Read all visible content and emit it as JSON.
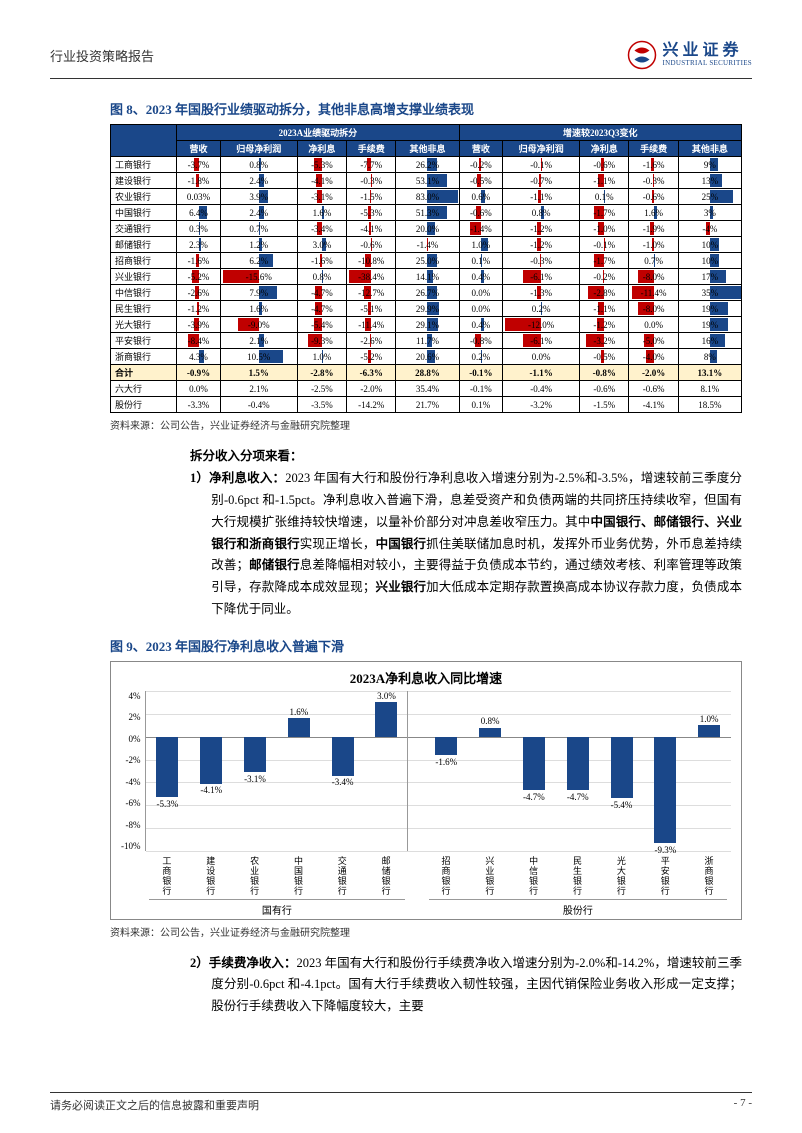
{
  "header": {
    "title": "行业投资策略报告",
    "logo_cn": "兴业证券",
    "logo_en": "INDUSTRIAL SECURITIES"
  },
  "fig8": {
    "title": "图 8、2023 年国股行业绩驱动拆分，其他非息高增支撑业绩表现",
    "group1": "2023A业绩驱动拆分",
    "group2": "增速较2023Q3变化",
    "cols": [
      "",
      "营收",
      "归母净利润",
      "净利息",
      "手续费",
      "其他非息",
      "营收",
      "归母净利润",
      "净利息",
      "手续费",
      "其他非息"
    ],
    "rows": [
      [
        "工商银行",
        "-3.7%",
        "0.8%",
        "-5.3%",
        "-7.7%",
        "26.2%",
        "-0.2%",
        "-0.1%",
        "-0.6%",
        "-1.6%",
        "9%"
      ],
      [
        "建设银行",
        "-1.8%",
        "2.4%",
        "-4.1%",
        "-0.3%",
        "53.1%",
        "-0.5%",
        "-0.7%",
        "-1.1%",
        "-0.3%",
        "13%"
      ],
      [
        "农业银行",
        "0.03%",
        "3.9%",
        "-3.1%",
        "-1.5%",
        "83.0%",
        "0.6%",
        "-1.1%",
        "0.1%",
        "-0.6%",
        "25%"
      ],
      [
        "中国银行",
        "6.4%",
        "2.4%",
        "1.6%",
        "-5.3%",
        "51.3%",
        "-0.6%",
        "0.8%",
        "-1.7%",
        "1.6%",
        "3%"
      ],
      [
        "交通银行",
        "0.3%",
        "0.7%",
        "-3.4%",
        "-4.1%",
        "20.0%",
        "-1.4%",
        "-1.2%",
        "-1.0%",
        "-1.9%",
        "-4%"
      ],
      [
        "邮储银行",
        "2.3%",
        "1.2%",
        "3.0%",
        "-0.6%",
        "-1.4%",
        "1.0%",
        "-1.2%",
        "-0.1%",
        "-1.0%",
        "10%"
      ],
      [
        "招商银行",
        "-1.6%",
        "6.2%",
        "-1.6%",
        "-10.8%",
        "25.0%",
        "0.1%",
        "-0.3%",
        "-1.7%",
        "0.7%",
        "10%"
      ],
      [
        "兴业银行",
        "-5.2%",
        "-15.6%",
        "0.8%",
        "-38.4%",
        "14.1%",
        "0.4%",
        "-6.1%",
        "-0.2%",
        "-8.0%",
        "17%"
      ],
      [
        "中信银行",
        "-2.6%",
        "7.9%",
        "-4.7%",
        "-12.7%",
        "26.7%",
        "0.0%",
        "-1.3%",
        "-2.8%",
        "-11.4%",
        "35%"
      ],
      [
        "民生银行",
        "-1.2%",
        "1.6%",
        "-4.7%",
        "-5.1%",
        "29.9%",
        "0.0%",
        "0.2%",
        "-1.1%",
        "-8.0%",
        "19%"
      ],
      [
        "光大银行",
        "-3.9%",
        "-9.0%",
        "-5.4%",
        "-11.4%",
        "29.1%",
        "0.4%",
        "-12.0%",
        "-1.2%",
        "0.0%",
        "19%"
      ],
      [
        "平安银行",
        "-8.4%",
        "2.1%",
        "-9.3%",
        "-2.6%",
        "11.7%",
        "-0.8%",
        "-6.1%",
        "-3.2%",
        "-5.0%",
        "16%"
      ],
      [
        "浙商银行",
        "4.3%",
        "10.5%",
        "1.0%",
        "-5.2%",
        "20.6%",
        "0.2%",
        "0.0%",
        "-0.5%",
        "-4.0%",
        "8%"
      ]
    ],
    "sum": [
      "合计",
      "-0.9%",
      "1.5%",
      "-2.8%",
      "-6.3%",
      "28.8%",
      "-0.1%",
      "-1.1%",
      "-0.8%",
      "-2.0%",
      "13.1%"
    ],
    "foot": [
      [
        "六大行",
        "0.0%",
        "2.1%",
        "-2.5%",
        "-2.0%",
        "35.4%",
        "-0.1%",
        "-0.4%",
        "-0.6%",
        "-0.6%",
        "8.1%"
      ],
      [
        "股份行",
        "-3.3%",
        "-0.4%",
        "-3.5%",
        "-14.2%",
        "21.7%",
        "0.1%",
        "-3.2%",
        "-1.5%",
        "-4.1%",
        "18.5%"
      ]
    ],
    "source": "资料来源：公司公告，兴业证券经济与金融研究院整理",
    "bar_neg_color": "#c00000",
    "bar_pos_color": "#1a4789"
  },
  "section1": {
    "subtitle": "拆分收入分项来看：",
    "p1a": "1）净利息收入：",
    "p1b": "2023 年国有大行和股份行净利息收入增速分别为-2.5%和-3.5%，增速较前三季度分别-0.6pct 和-1.5pct。净利息收入普遍下滑，息差受资产和负债两端的共同挤压持续收窄，但国有大行规模扩张维持较快增速，以量补价部分对冲息差收窄压力。其中",
    "p1c": "中国银行、邮储银行、兴业银行和浙商银行",
    "p1d": "实现正增长，",
    "p1e": "中国银行",
    "p1f": "抓住美联储加息时机，发挥外币业务优势，外币息差持续改善；",
    "p1g": "邮储银行",
    "p1h": "息差降幅相对较小，主要得益于负债成本节约，通过绩效考核、利率管理等政策引导，存款降成本成效显现；",
    "p1i": "兴业银行",
    "p1j": "加大低成本定期存款置换高成本协议存款力度，负债成本下降优于同业。"
  },
  "fig9": {
    "title": "图 9、2023 年国股行净利息收入普遍下滑",
    "chart_title": "2023A净利息收入同比增速",
    "y_ticks": [
      "4%",
      "2%",
      "0%",
      "-2%",
      "-4%",
      "-6%",
      "-8%",
      "-10%"
    ],
    "y_max": 4,
    "y_min": -10,
    "bar_color": "#1a4789",
    "grid_color": "#dddddd",
    "group1": {
      "label": "国有行",
      "bars": [
        {
          "name": "工商银行",
          "value": -5.3
        },
        {
          "name": "建设银行",
          "value": -4.1
        },
        {
          "name": "农业银行",
          "value": -3.1
        },
        {
          "name": "中国银行",
          "value": 1.6
        },
        {
          "name": "交通银行",
          "value": -3.4
        },
        {
          "name": "邮储银行",
          "value": 3.0
        }
      ]
    },
    "group2": {
      "label": "股份行",
      "bars": [
        {
          "name": "招商银行",
          "value": -1.6
        },
        {
          "name": "兴业银行",
          "value": 0.8
        },
        {
          "name": "中信银行",
          "value": -4.7
        },
        {
          "name": "民生银行",
          "value": -4.7
        },
        {
          "name": "光大银行",
          "value": -5.4
        },
        {
          "name": "平安银行",
          "value": -9.3
        },
        {
          "name": "浙商银行",
          "value": 1.0
        }
      ]
    },
    "source": "资料来源：公司公告，兴业证券经济与金融研究院整理"
  },
  "section2": {
    "p2a": "2）手续费净收入：",
    "p2b": "2023 年国有大行和股份行手续费净收入增速分别为-2.0%和-14.2%，增速较前三季度分别-0.6pct 和-4.1pct。国有大行手续费收入韧性较强，主因代销保险业务收入形成一定支撑；股份行手续费收入下降幅度较大，主要"
  },
  "footer": {
    "disclaimer": "请务必阅读正文之后的信息披露和重要声明",
    "page": "- 7 -"
  }
}
